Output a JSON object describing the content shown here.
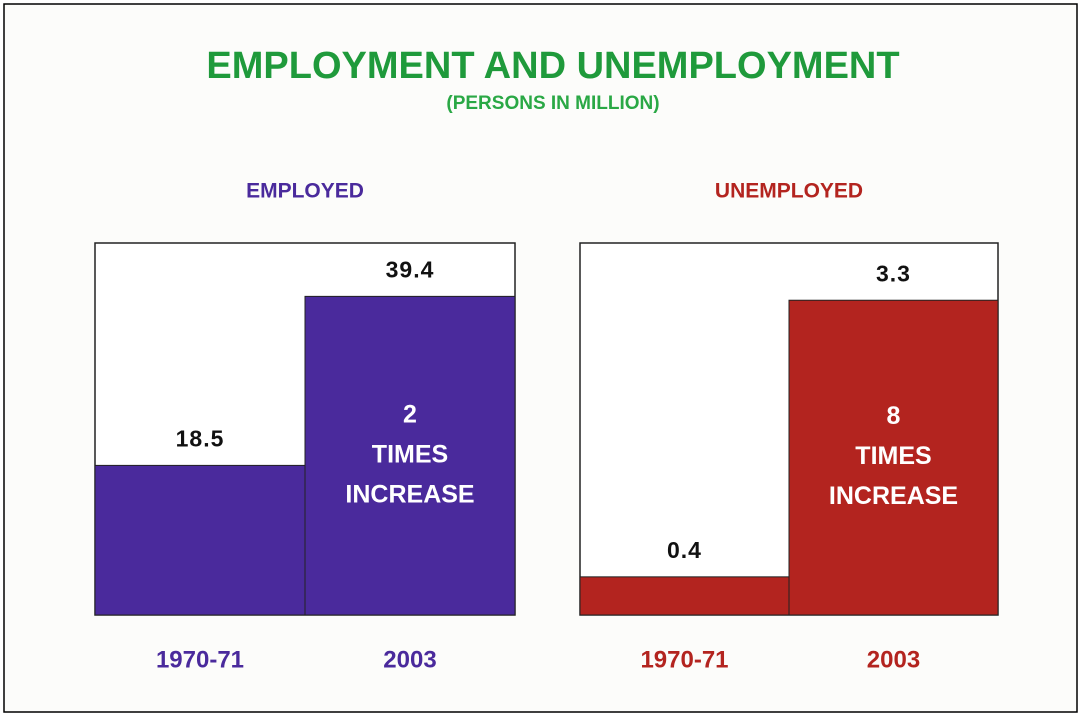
{
  "title": "EMPLOYMENT AND UNEMPLOYMENT",
  "subtitle": "(PERSONS IN MILLION)",
  "chart_data": [
    {
      "type": "bar",
      "title": "EMPLOYED",
      "categories": [
        "1970-71",
        "2003"
      ],
      "values": [
        18.5,
        39.4
      ],
      "color": "#4a2a9c",
      "ylim": [
        0,
        46
      ],
      "annotation": [
        "2",
        "TIMES",
        "INCREASE"
      ]
    },
    {
      "type": "bar",
      "title": "UNEMPLOYED",
      "categories": [
        "1970-71",
        "2003"
      ],
      "values": [
        0.4,
        3.3
      ],
      "color": "#b3241f",
      "ylim": [
        0,
        3.9
      ],
      "annotation": [
        "8",
        "TIMES",
        "INCREASE"
      ]
    }
  ]
}
